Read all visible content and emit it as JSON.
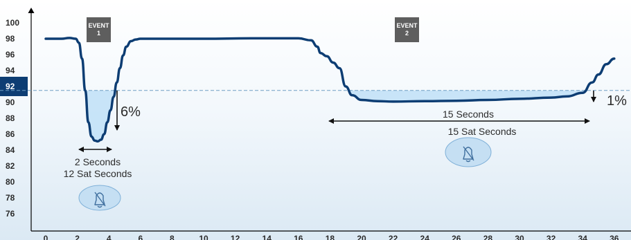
{
  "chart_data": {
    "type": "line",
    "xlim": [
      0,
      36
    ],
    "ylim": [
      74,
      100
    ],
    "x_ticks": [
      0,
      2,
      4,
      6,
      8,
      10,
      12,
      14,
      16,
      18,
      20,
      22,
      24,
      26,
      28,
      30,
      32,
      34,
      36
    ],
    "y_ticks": [
      76,
      78,
      80,
      82,
      84,
      86,
      88,
      90,
      92,
      94,
      96,
      98,
      100
    ],
    "threshold": 91.5,
    "highlighted_y_tick": "92",
    "series": [
      {
        "x": [
          0,
          1,
          1.5,
          1.9,
          2.1,
          2.3,
          2.5,
          2.7,
          2.9,
          3.1,
          3.3,
          3.5,
          3.7,
          3.9,
          4.1,
          4.3,
          4.5,
          4.7,
          4.9,
          5.1,
          5.4,
          5.7,
          6,
          6.5,
          7,
          10,
          13,
          16,
          16.8,
          17.2,
          17.4,
          17.8,
          18.2,
          18.6,
          19,
          19.4,
          20,
          21,
          22,
          24,
          26,
          28,
          30,
          32,
          33,
          34,
          34.6,
          35,
          35.5,
          36
        ],
        "y": [
          98,
          98,
          98.1,
          98.0,
          97.5,
          95.5,
          91.5,
          87.5,
          85.7,
          85.2,
          85.1,
          85.3,
          86.0,
          87.5,
          89.0,
          90.7,
          92.5,
          94.3,
          95.9,
          97.0,
          97.7,
          97.9,
          98.0,
          98.0,
          98.0,
          98.0,
          98.05,
          98.05,
          97.8,
          97.0,
          96.2,
          95.8,
          95.0,
          94.3,
          92.0,
          90.9,
          90.3,
          90.15,
          90.1,
          90.15,
          90.2,
          90.3,
          90.45,
          90.6,
          90.75,
          91.2,
          92.5,
          93.5,
          94.8,
          95.5
        ]
      }
    ],
    "events": [
      {
        "label_line1": "EVENT",
        "label_line2": "1",
        "x": 3.1
      },
      {
        "label_line1": "EVENT",
        "label_line2": "2",
        "x": 25.6
      }
    ],
    "annotations": {
      "event1_depth": "6%",
      "event1_duration": "2 Seconds",
      "event1_sat_seconds": "12 Sat Seconds",
      "event2_depth": "1%",
      "event2_duration": "15 Seconds",
      "event2_sat_seconds": "15 Sat Seconds"
    },
    "colors": {
      "line": "#0d3d73",
      "fill": "#bfe0f7",
      "threshold": "#6f9ec4",
      "highlight": "#0d3d73",
      "event_box": "#5e5e5e",
      "alarm_bubble": "#c5dff3"
    },
    "icons": [
      "alarm-silenced-icon",
      "alarm-silenced-icon"
    ]
  }
}
